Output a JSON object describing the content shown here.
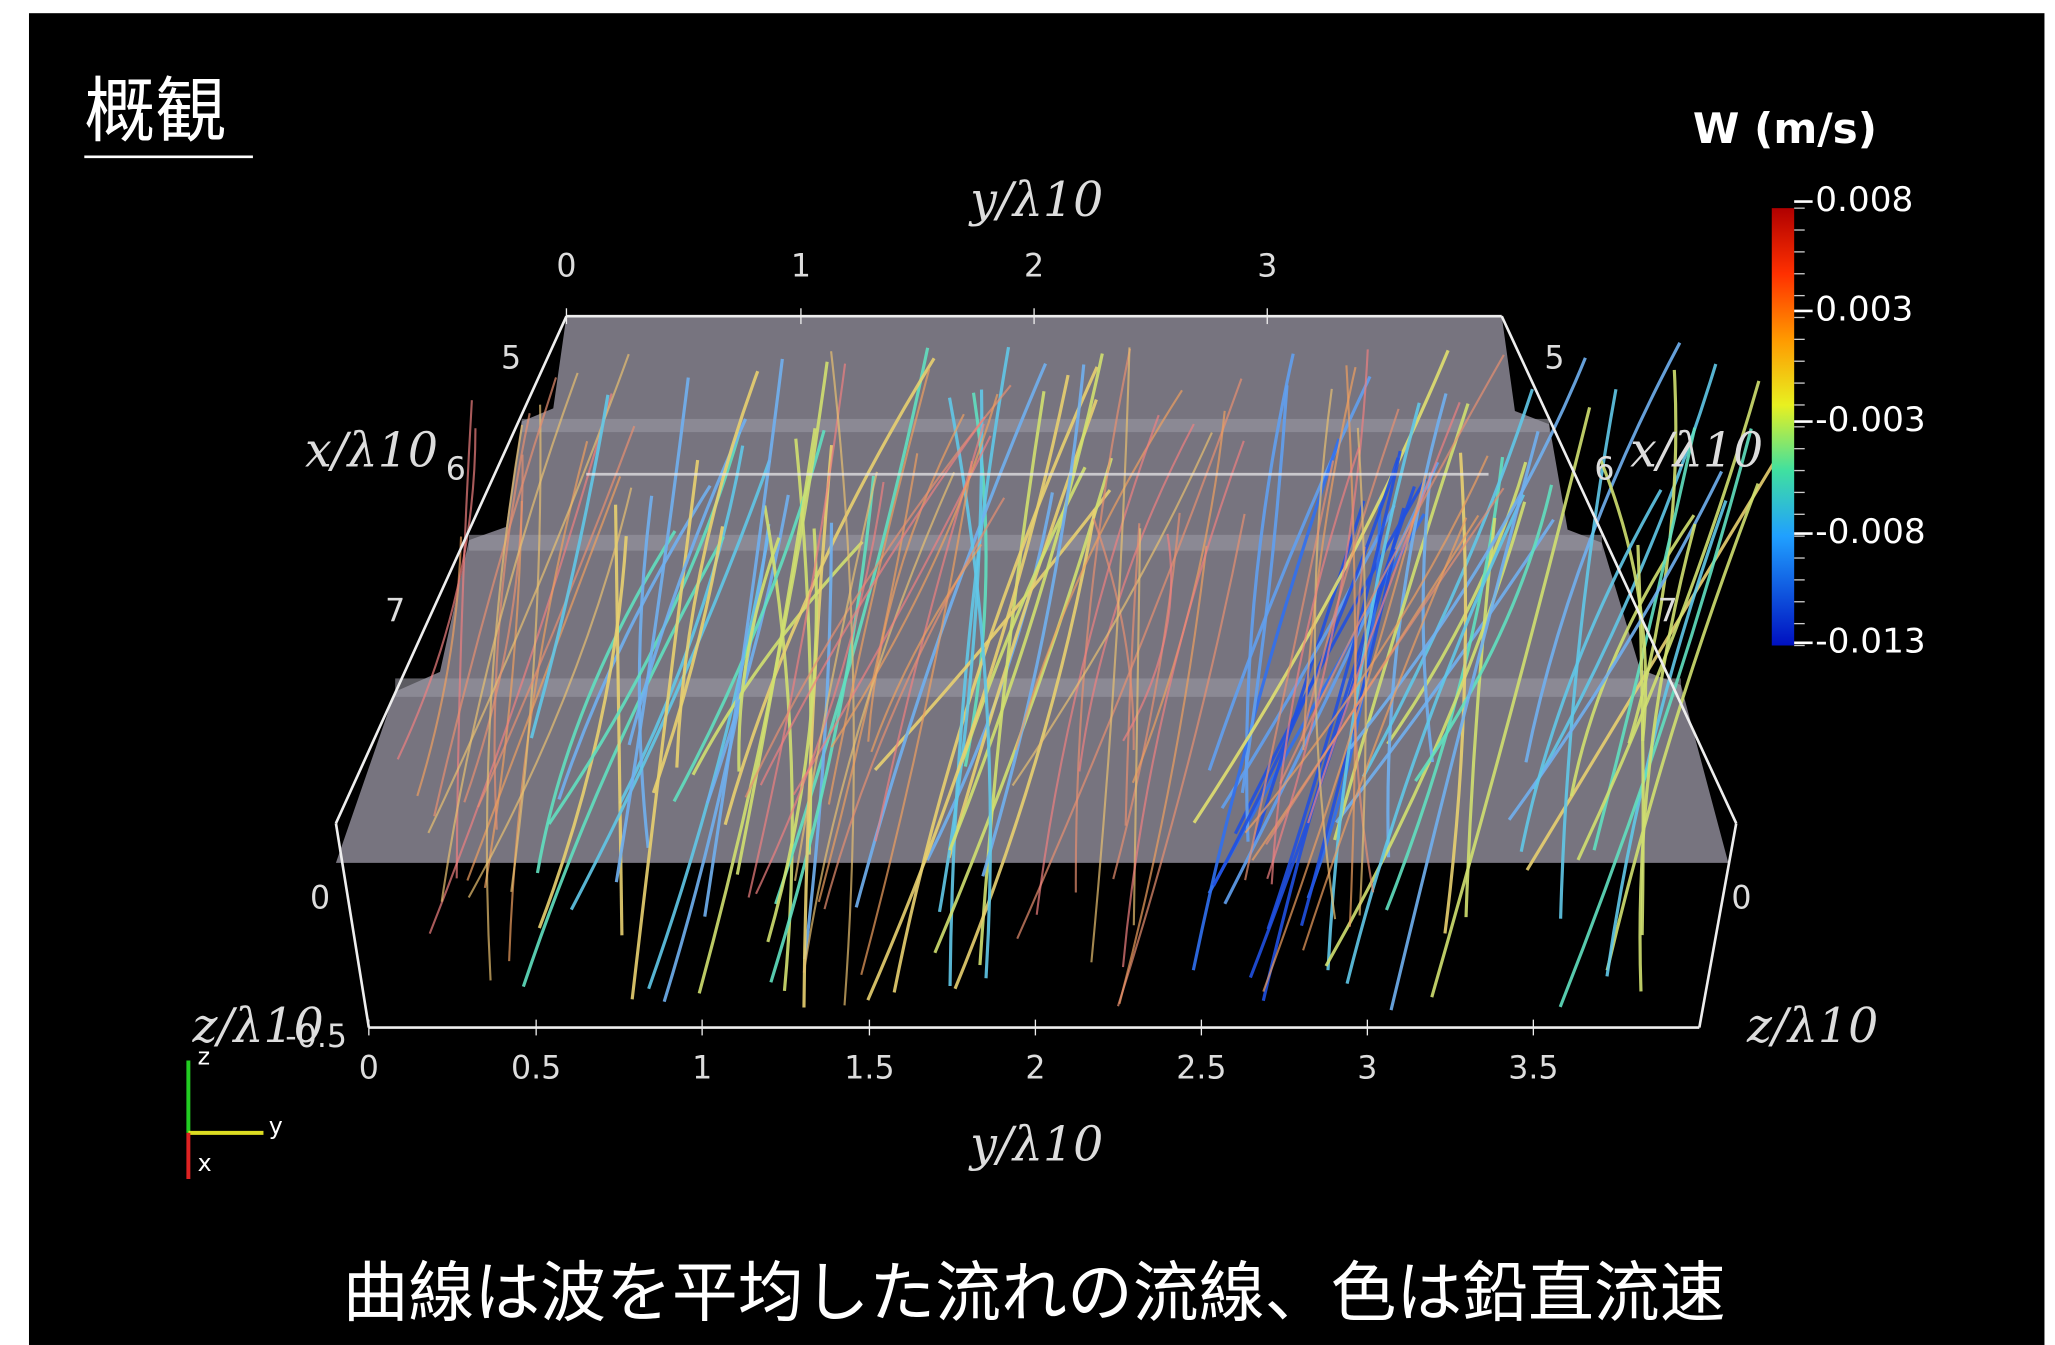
{
  "title": "概観",
  "colorbar": {
    "title": "W (m/s)",
    "labels": [
      "0.008",
      "0.003",
      "-0.003",
      "-0.008",
      "-0.013"
    ]
  },
  "axes": {
    "y_top_label": "y/λ10",
    "y_top_ticks": [
      "0",
      "1",
      "2",
      "3"
    ],
    "y_bottom_label": "y/λ10",
    "y_bottom_ticks": [
      "0",
      "0.5",
      "1",
      "1.5",
      "2",
      "2.5",
      "3",
      "3.5"
    ],
    "x_left_label": "x/λ10",
    "x_left_ticks": [
      "5",
      "6",
      "7"
    ],
    "x_right_label": "x/λ10",
    "x_right_ticks": [
      "5",
      "6",
      "7"
    ],
    "z_left_label": "z/λ10",
    "z_left_ticks": [
      "0",
      "-0.5"
    ],
    "z_right_label": "z/λ10",
    "z_right_ticks": [
      "0"
    ],
    "triad": [
      "z",
      "y",
      "x"
    ]
  },
  "caption": "曲線は波を平均した流れの流線、色は鉛直流速"
}
